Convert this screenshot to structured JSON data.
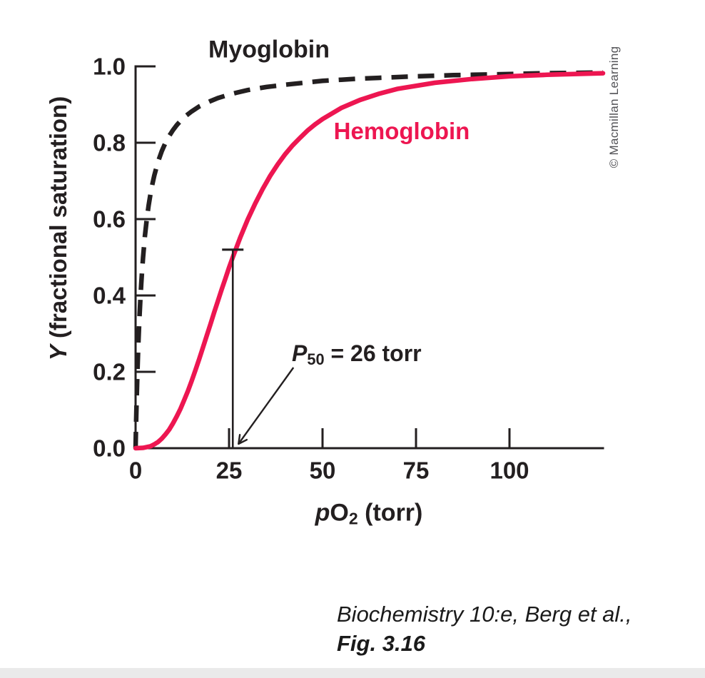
{
  "figure": {
    "p50_annotation": {
      "symbol": "P",
      "subscript": "50",
      "value_text": " = 26 torr"
    },
    "y_axis_title": {
      "symbol": "Y",
      "rest": " (fractional saturation)"
    },
    "x_axis_title": {
      "symbol": "p",
      "molecule": "O",
      "subscript": "2",
      "rest": " (torr)"
    },
    "credit": "© Macmillan Learning",
    "citation": {
      "line1": "Biochemistry 10:e, Berg et al.,",
      "line2": "Fig. 3.16"
    }
  },
  "colors": {
    "ink": "#231F20",
    "hemoglobin_red": "#ED1651",
    "credit_gray": "#515155",
    "bottom_strip": "#eaeaea"
  },
  "chart_data": {
    "type": "line",
    "title": "",
    "xlabel": "pO2 (torr)",
    "ylabel": "Y (fractional saturation)",
    "xlim": [
      0,
      125
    ],
    "ylim": [
      0,
      1.0
    ],
    "grid": false,
    "legend_position": "inline-labels",
    "xticks": {
      "values": [
        0,
        25,
        50,
        75,
        100
      ],
      "labels": [
        "0",
        "25",
        "50",
        "75",
        "100"
      ]
    },
    "yticks": {
      "values": [
        0,
        0.2,
        0.4,
        0.6,
        0.8,
        1.0
      ],
      "labels": [
        "0.0",
        "0.2",
        "0.4",
        "0.6",
        "0.8",
        "1.0"
      ]
    },
    "annotations": [
      {
        "type": "p50-marker",
        "label": "P50 = 26 torr",
        "x_torr": 26,
        "y_saturation": 0.5,
        "marker_top_saturation": 0.52
      }
    ],
    "series": [
      {
        "name": "Myoglobin",
        "style": "dashed",
        "color": "#231F20",
        "points": [
          [
            0,
            0
          ],
          [
            0.1,
            0.048
          ],
          [
            0.25,
            0.111
          ],
          [
            0.5,
            0.2
          ],
          [
            0.75,
            0.273
          ],
          [
            1,
            0.333
          ],
          [
            1.25,
            0.385
          ],
          [
            1.5,
            0.429
          ],
          [
            1.75,
            0.467
          ],
          [
            2,
            0.5
          ],
          [
            2.5,
            0.556
          ],
          [
            3,
            0.6
          ],
          [
            3.5,
            0.636
          ],
          [
            4,
            0.667
          ],
          [
            4.5,
            0.692
          ],
          [
            5,
            0.714
          ],
          [
            6,
            0.75
          ],
          [
            7,
            0.778
          ],
          [
            8,
            0.8
          ],
          [
            9,
            0.818
          ],
          [
            10,
            0.833
          ],
          [
            11,
            0.846
          ],
          [
            12,
            0.857
          ],
          [
            13,
            0.867
          ],
          [
            15,
            0.882
          ],
          [
            17,
            0.895
          ],
          [
            20,
            0.909
          ],
          [
            22,
            0.917
          ],
          [
            25,
            0.926
          ],
          [
            27,
            0.931
          ],
          [
            30,
            0.938
          ],
          [
            35,
            0.946
          ],
          [
            40,
            0.952
          ],
          [
            45,
            0.957
          ],
          [
            50,
            0.962
          ],
          [
            55,
            0.965
          ],
          [
            60,
            0.968
          ],
          [
            65,
            0.97
          ],
          [
            75,
            0.974
          ],
          [
            85,
            0.977
          ],
          [
            90,
            0.978
          ],
          [
            100,
            0.98
          ],
          [
            110,
            0.982
          ],
          [
            125,
            0.984
          ]
        ]
      },
      {
        "name": "Hemoglobin",
        "style": "solid",
        "color": "#ED1651",
        "points": [
          [
            0,
            0
          ],
          [
            2,
            0.001
          ],
          [
            4,
            0.005
          ],
          [
            5,
            0.01
          ],
          [
            6,
            0.016
          ],
          [
            7,
            0.025
          ],
          [
            8,
            0.036
          ],
          [
            9,
            0.049
          ],
          [
            10,
            0.065
          ],
          [
            11,
            0.083
          ],
          [
            12,
            0.103
          ],
          [
            13,
            0.126
          ],
          [
            14,
            0.15
          ],
          [
            15,
            0.176
          ],
          [
            16,
            0.204
          ],
          [
            17,
            0.233
          ],
          [
            18,
            0.263
          ],
          [
            19,
            0.294
          ],
          [
            20,
            0.324
          ],
          [
            21,
            0.355
          ],
          [
            22,
            0.385
          ],
          [
            23,
            0.415
          ],
          [
            24,
            0.444
          ],
          [
            25,
            0.473
          ],
          [
            26,
            0.5
          ],
          [
            28,
            0.552
          ],
          [
            30,
            0.599
          ],
          [
            32,
            0.641
          ],
          [
            34,
            0.679
          ],
          [
            36,
            0.713
          ],
          [
            38,
            0.743
          ],
          [
            40,
            0.77
          ],
          [
            42,
            0.793
          ],
          [
            44,
            0.813
          ],
          [
            46,
            0.832
          ],
          [
            48,
            0.848
          ],
          [
            50,
            0.862
          ],
          [
            55,
            0.891
          ],
          [
            60,
            0.912
          ],
          [
            65,
            0.928
          ],
          [
            70,
            0.941
          ],
          [
            80,
            0.957
          ],
          [
            90,
            0.967
          ],
          [
            100,
            0.974
          ],
          [
            110,
            0.978
          ],
          [
            125,
            0.982
          ]
        ]
      }
    ]
  }
}
